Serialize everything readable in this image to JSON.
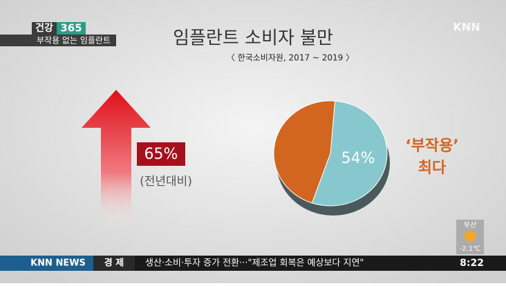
{
  "header": {
    "tag": "건강",
    "tag_number": "365",
    "program": "부작용 없는 임플란트",
    "logo": "KNN"
  },
  "chart_data": {
    "type": "pie",
    "title": "임플란트 소비자 불만",
    "subtitle": "〈 한국소비자원, 2017 ~ 2019 〉",
    "values": [
      54,
      46
    ],
    "value_labels": [
      "54%",
      null
    ],
    "colors": [
      "#86c8cd",
      "#d2651f"
    ],
    "annotation": [
      "‘부작용’",
      "최다"
    ]
  },
  "increase": {
    "value_label": "65%",
    "note": "(전년대비)"
  },
  "weather": {
    "city": "부산",
    "temp": "-2.1℃"
  },
  "ticker": {
    "brand": "KNN NEWS",
    "section": "경 제",
    "headline": "생산·소비·투자 증가 전환···\"제조업 회복은 예상보다 지연\"",
    "time": "8:22"
  }
}
